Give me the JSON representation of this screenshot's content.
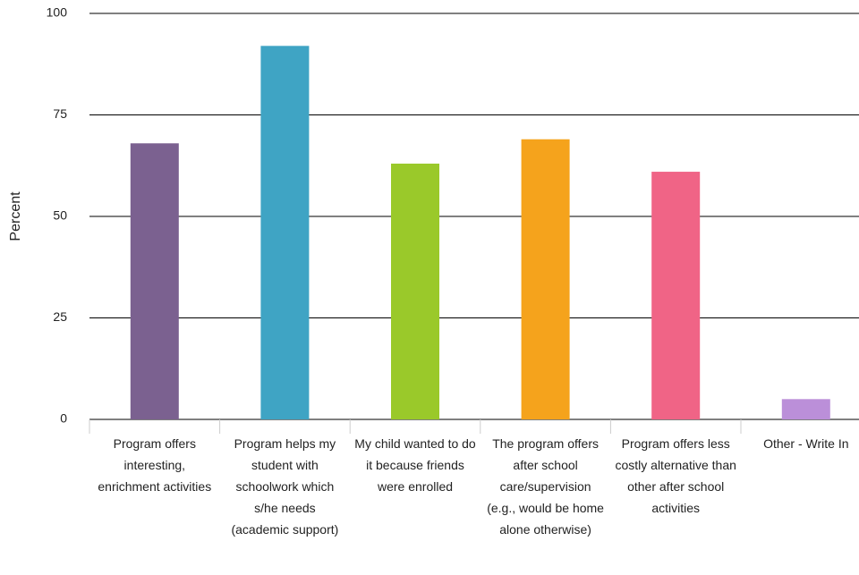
{
  "chart_data": {
    "type": "bar",
    "y_label": "Percent",
    "categories": [
      "Program offers interesting, enrichment activities",
      "Program helps my student with schoolwork which s/he needs (academic support)",
      "My child wanted to do it because friends were enrolled",
      "The program offers after school care/supervision (e.g., would be home alone otherwise)",
      "Program offers less costly alternative than other after school activities",
      "Other - Write In"
    ],
    "values": [
      68,
      92,
      63,
      69,
      61,
      5
    ],
    "colors": [
      "#7b6190",
      "#3fa4c4",
      "#9ac92a",
      "#f5a31c",
      "#f06486",
      "#bb8fd9"
    ],
    "ylim": [
      0,
      100
    ],
    "yticks": [
      0,
      25,
      50,
      75,
      100
    ],
    "grid": true
  }
}
